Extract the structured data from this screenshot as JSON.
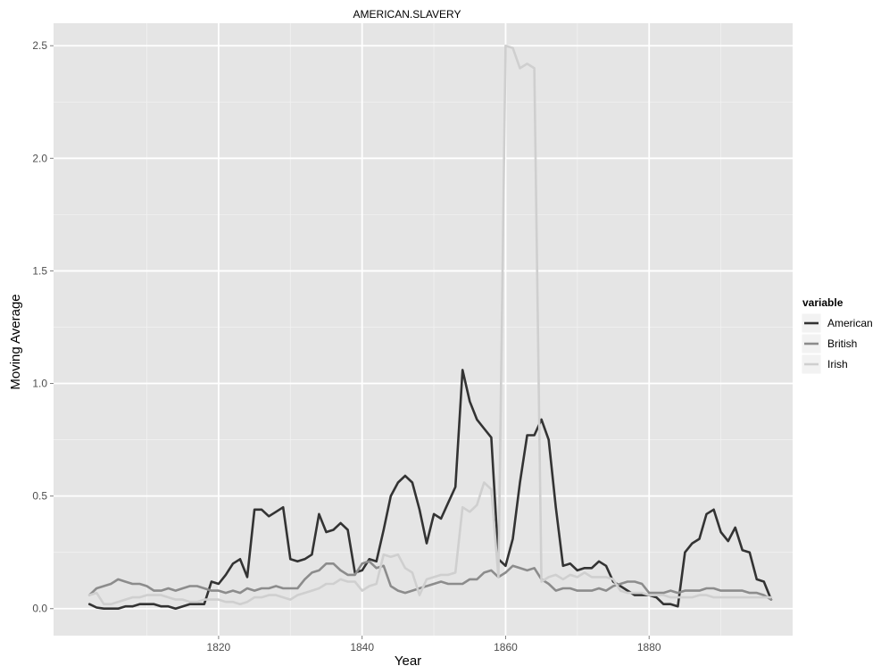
{
  "chart_data": {
    "type": "line",
    "title": "AMERICAN.SLAVERY",
    "xlabel": "Year",
    "ylabel": "Moving Average",
    "xlim": [
      1797,
      1900
    ],
    "ylim": [
      -0.12,
      2.6
    ],
    "x_ticks": [
      1820,
      1840,
      1860,
      1880
    ],
    "x_tick_labels": [
      "1820",
      "1840",
      "1860",
      "1880"
    ],
    "y_ticks": [
      0,
      0.5,
      1,
      1.5,
      2,
      2.5
    ],
    "y_tick_labels": [
      "0.0",
      "0.5",
      "1.0",
      "1.5",
      "2.0",
      "2.5"
    ],
    "grid": true,
    "legend_title": "variable",
    "legend_position": "right",
    "x": [
      1802,
      1803,
      1804,
      1805,
      1806,
      1807,
      1808,
      1809,
      1810,
      1811,
      1812,
      1813,
      1814,
      1815,
      1816,
      1817,
      1818,
      1819,
      1820,
      1821,
      1822,
      1823,
      1824,
      1825,
      1826,
      1827,
      1828,
      1829,
      1830,
      1831,
      1832,
      1833,
      1834,
      1835,
      1836,
      1837,
      1838,
      1839,
      1840,
      1841,
      1842,
      1843,
      1844,
      1845,
      1846,
      1847,
      1848,
      1849,
      1850,
      1851,
      1852,
      1853,
      1854,
      1855,
      1856,
      1857,
      1858,
      1859,
      1860,
      1861,
      1862,
      1863,
      1864,
      1865,
      1866,
      1867,
      1868,
      1869,
      1870,
      1871,
      1872,
      1873,
      1874,
      1875,
      1876,
      1877,
      1878,
      1879,
      1880,
      1881,
      1882,
      1883,
      1884,
      1885,
      1886,
      1887,
      1888,
      1889,
      1890,
      1891,
      1892,
      1893,
      1894,
      1895,
      1896,
      1897
    ],
    "series": [
      {
        "name": "American",
        "color": "#333333",
        "values": [
          0.02,
          0.005,
          0.0,
          0.0,
          0.0,
          0.01,
          0.01,
          0.02,
          0.02,
          0.02,
          0.01,
          0.01,
          0.0,
          0.01,
          0.02,
          0.02,
          0.02,
          0.12,
          0.11,
          0.15,
          0.2,
          0.22,
          0.14,
          0.44,
          0.44,
          0.41,
          0.43,
          0.45,
          0.22,
          0.21,
          0.22,
          0.24,
          0.42,
          0.34,
          0.35,
          0.38,
          0.35,
          0.16,
          0.17,
          0.22,
          0.21,
          0.35,
          0.5,
          0.56,
          0.59,
          0.56,
          0.44,
          0.29,
          0.42,
          0.4,
          0.47,
          0.54,
          1.06,
          0.92,
          0.84,
          0.8,
          0.76,
          0.22,
          0.19,
          0.31,
          0.56,
          0.77,
          0.77,
          0.84,
          0.75,
          0.45,
          0.19,
          0.2,
          0.17,
          0.18,
          0.18,
          0.21,
          0.19,
          0.12,
          0.1,
          0.08,
          0.06,
          0.06,
          0.06,
          0.05,
          0.02,
          0.02,
          0.01,
          0.25,
          0.29,
          0.31,
          0.42,
          0.44,
          0.34,
          0.3,
          0.36,
          0.26,
          0.25,
          0.13,
          0.12,
          0.04
        ]
      },
      {
        "name": "British",
        "color": "#8c8c8c",
        "values": [
          0.06,
          0.09,
          0.1,
          0.11,
          0.13,
          0.12,
          0.11,
          0.11,
          0.1,
          0.08,
          0.08,
          0.09,
          0.08,
          0.09,
          0.1,
          0.1,
          0.09,
          0.08,
          0.08,
          0.07,
          0.08,
          0.07,
          0.09,
          0.08,
          0.09,
          0.09,
          0.1,
          0.09,
          0.09,
          0.09,
          0.13,
          0.16,
          0.17,
          0.2,
          0.2,
          0.17,
          0.15,
          0.15,
          0.2,
          0.21,
          0.18,
          0.19,
          0.1,
          0.08,
          0.07,
          0.08,
          0.09,
          0.1,
          0.11,
          0.12,
          0.11,
          0.11,
          0.11,
          0.13,
          0.13,
          0.16,
          0.17,
          0.14,
          0.16,
          0.19,
          0.18,
          0.17,
          0.18,
          0.13,
          0.11,
          0.08,
          0.09,
          0.09,
          0.08,
          0.08,
          0.08,
          0.09,
          0.08,
          0.1,
          0.11,
          0.12,
          0.12,
          0.11,
          0.07,
          0.07,
          0.07,
          0.08,
          0.07,
          0.08,
          0.08,
          0.08,
          0.09,
          0.09,
          0.08,
          0.08,
          0.08,
          0.08,
          0.07,
          0.07,
          0.06,
          0.04
        ]
      },
      {
        "name": "Irish",
        "color": "#cfcfcf",
        "values": [
          0.06,
          0.07,
          0.02,
          0.02,
          0.03,
          0.04,
          0.05,
          0.05,
          0.06,
          0.06,
          0.06,
          0.05,
          0.04,
          0.04,
          0.03,
          0.03,
          0.04,
          0.04,
          0.04,
          0.03,
          0.03,
          0.02,
          0.03,
          0.05,
          0.05,
          0.06,
          0.06,
          0.05,
          0.04,
          0.06,
          0.07,
          0.08,
          0.09,
          0.11,
          0.11,
          0.13,
          0.12,
          0.12,
          0.08,
          0.1,
          0.11,
          0.24,
          0.23,
          0.24,
          0.18,
          0.16,
          0.06,
          0.13,
          0.14,
          0.15,
          0.15,
          0.16,
          0.45,
          0.43,
          0.46,
          0.56,
          0.53,
          0.14,
          2.5,
          2.49,
          2.4,
          2.42,
          2.4,
          0.12,
          0.14,
          0.15,
          0.13,
          0.15,
          0.14,
          0.16,
          0.14,
          0.14,
          0.14,
          0.13,
          0.08,
          0.07,
          0.07,
          0.07,
          0.06,
          0.06,
          0.06,
          0.05,
          0.05,
          0.05,
          0.05,
          0.06,
          0.06,
          0.05,
          0.05,
          0.05,
          0.05,
          0.05,
          0.05,
          0.05,
          0.05,
          0.05
        ]
      }
    ]
  }
}
